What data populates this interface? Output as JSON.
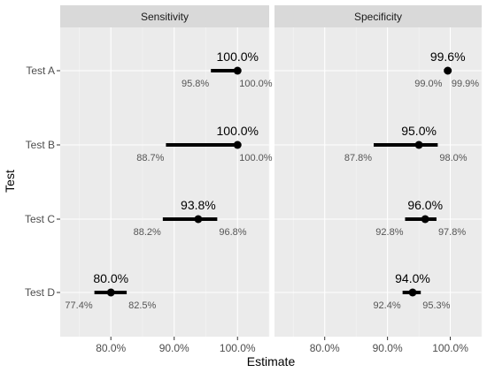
{
  "chart_data": {
    "type": "forest",
    "xlabel": "Estimate",
    "ylabel": "Test",
    "xlim": [
      0.72,
      1.05
    ],
    "x_ticks": [
      0.8,
      0.9,
      1.0
    ],
    "x_tick_labels": [
      "80.0%",
      "90.0%",
      "100.0%"
    ],
    "categories": [
      "Test A",
      "Test B",
      "Test C",
      "Test D"
    ],
    "panels": [
      {
        "name": "Sensitivity",
        "points": [
          {
            "test": "Test A",
            "estimate": 1.0,
            "lower": 0.958,
            "upper": 1.0,
            "estimate_label": "100.0%",
            "lower_label": "95.8%",
            "upper_label": "100.0%"
          },
          {
            "test": "Test B",
            "estimate": 1.0,
            "lower": 0.887,
            "upper": 1.0,
            "estimate_label": "100.0%",
            "lower_label": "88.7%",
            "upper_label": "100.0%"
          },
          {
            "test": "Test C",
            "estimate": 0.938,
            "lower": 0.882,
            "upper": 0.968,
            "estimate_label": "93.8%",
            "lower_label": "88.2%",
            "upper_label": "96.8%"
          },
          {
            "test": "Test D",
            "estimate": 0.8,
            "lower": 0.774,
            "upper": 0.825,
            "estimate_label": "80.0%",
            "lower_label": "77.4%",
            "upper_label": "82.5%"
          }
        ]
      },
      {
        "name": "Specificity",
        "points": [
          {
            "test": "Test A",
            "estimate": 0.996,
            "lower": 0.99,
            "upper": 0.999,
            "estimate_label": "99.6%",
            "lower_label": "99.0%",
            "upper_label": "99.9%"
          },
          {
            "test": "Test B",
            "estimate": 0.95,
            "lower": 0.878,
            "upper": 0.98,
            "estimate_label": "95.0%",
            "lower_label": "87.8%",
            "upper_label": "98.0%"
          },
          {
            "test": "Test C",
            "estimate": 0.96,
            "lower": 0.928,
            "upper": 0.978,
            "estimate_label": "96.0%",
            "lower_label": "92.8%",
            "upper_label": "97.8%"
          },
          {
            "test": "Test D",
            "estimate": 0.94,
            "lower": 0.924,
            "upper": 0.953,
            "estimate_label": "94.0%",
            "lower_label": "92.4%",
            "upper_label": "95.3%"
          }
        ]
      }
    ],
    "grid": true,
    "colors": {
      "panel_background": "#ebebeb",
      "strip_background": "#d9d9d9",
      "mark": "#000000"
    }
  }
}
